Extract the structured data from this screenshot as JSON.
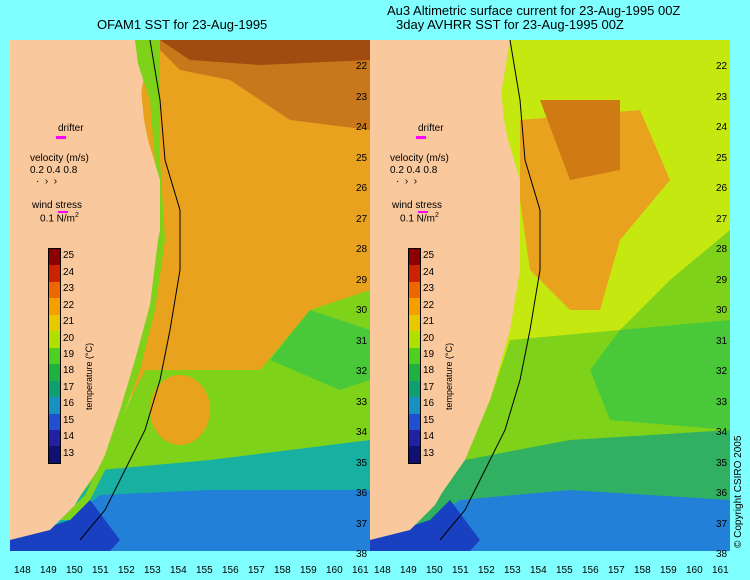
{
  "left_title": "OFAM1 SST for 23-Aug-1995",
  "right_title_line1": "Au3 Altimetric surface current for 23-Aug-1995 00Z",
  "right_title_line2": "3day AVHRR SST for 23-Aug-1995 00Z",
  "latitudes": [
    "22",
    "23",
    "24",
    "25",
    "26",
    "27",
    "28",
    "29",
    "30",
    "31",
    "32",
    "33",
    "34",
    "35",
    "36",
    "37",
    "38"
  ],
  "longitudes": [
    "148",
    "149",
    "150",
    "151",
    "152",
    "153",
    "154",
    "155",
    "156",
    "157",
    "158",
    "159",
    "160",
    "161"
  ],
  "legend": {
    "drifter": "drifter",
    "velocity_label": "velocity (m/s)",
    "velocity_scale": "0.2 0.4 0.8",
    "wind_label": "wind stress",
    "wind_scale": "0.1 N/m",
    "wind_superscript": "2"
  },
  "colorbar": {
    "ticks": [
      "25",
      "24",
      "23",
      "22",
      "21",
      "20",
      "19",
      "18",
      "17",
      "16",
      "15",
      "14",
      "13"
    ],
    "label": "temperature (°C)",
    "colors": [
      "#8b0000",
      "#cc2200",
      "#ee6600",
      "#f3a000",
      "#e8c800",
      "#b0e000",
      "#4fd020",
      "#20b040",
      "#10a070",
      "#1890c0",
      "#2050d0",
      "#2020a0",
      "#101070"
    ]
  },
  "copyright": "© Copyright CSIRO 2005",
  "colors": {
    "land": "#f9c89d",
    "frame": "#7fffff"
  }
}
